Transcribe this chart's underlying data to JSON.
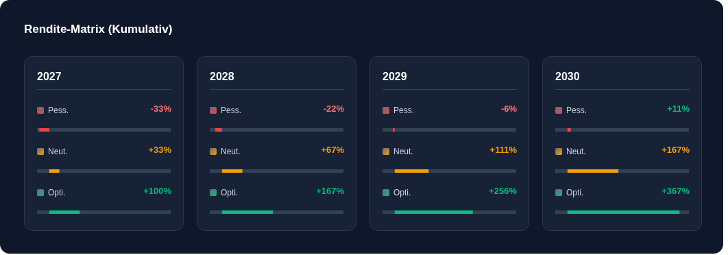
{
  "chart_data": [
    {
      "type": "bar",
      "orientation": "horizontal",
      "title": "Rendite-Matrix (Kumulativ)",
      "subtitle": "2027",
      "categories": [
        "Pess.",
        "Neut.",
        "Opti."
      ],
      "values": [
        -33,
        33,
        100
      ],
      "value_labels": [
        "-33%",
        "+33%",
        "+100%"
      ],
      "colors": [
        "#ef4444",
        "#f59e0b",
        "#10b981"
      ],
      "xlim": [
        -40,
        400
      ],
      "tick_labels": false,
      "grid": false,
      "legend": false
    },
    {
      "type": "bar",
      "orientation": "horizontal",
      "subtitle": "2028",
      "categories": [
        "Pess.",
        "Neut.",
        "Opti."
      ],
      "values": [
        -22,
        67,
        167
      ],
      "value_labels": [
        "-22%",
        "+67%",
        "+167%"
      ],
      "colors": [
        "#ef4444",
        "#f59e0b",
        "#10b981"
      ],
      "xlim": [
        -40,
        400
      ],
      "tick_labels": false,
      "grid": false,
      "legend": false
    },
    {
      "type": "bar",
      "orientation": "horizontal",
      "subtitle": "2029",
      "categories": [
        "Pess.",
        "Neut.",
        "Opti."
      ],
      "values": [
        -6,
        111,
        256
      ],
      "value_labels": [
        "-6%",
        "+111%",
        "+256%"
      ],
      "colors": [
        "#ef4444",
        "#f59e0b",
        "#10b981"
      ],
      "xlim": [
        -40,
        400
      ],
      "tick_labels": false,
      "grid": false,
      "legend": false
    },
    {
      "type": "bar",
      "orientation": "horizontal",
      "subtitle": "2030",
      "categories": [
        "Pess.",
        "Neut.",
        "Opti."
      ],
      "values": [
        11,
        167,
        367
      ],
      "value_labels": [
        "+11%",
        "+167%",
        "+367%"
      ],
      "colors": [
        "#ef4444",
        "#f59e0b",
        "#10b981"
      ],
      "xlim": [
        -40,
        400
      ],
      "tick_labels": false,
      "grid": false,
      "legend": false
    }
  ]
}
